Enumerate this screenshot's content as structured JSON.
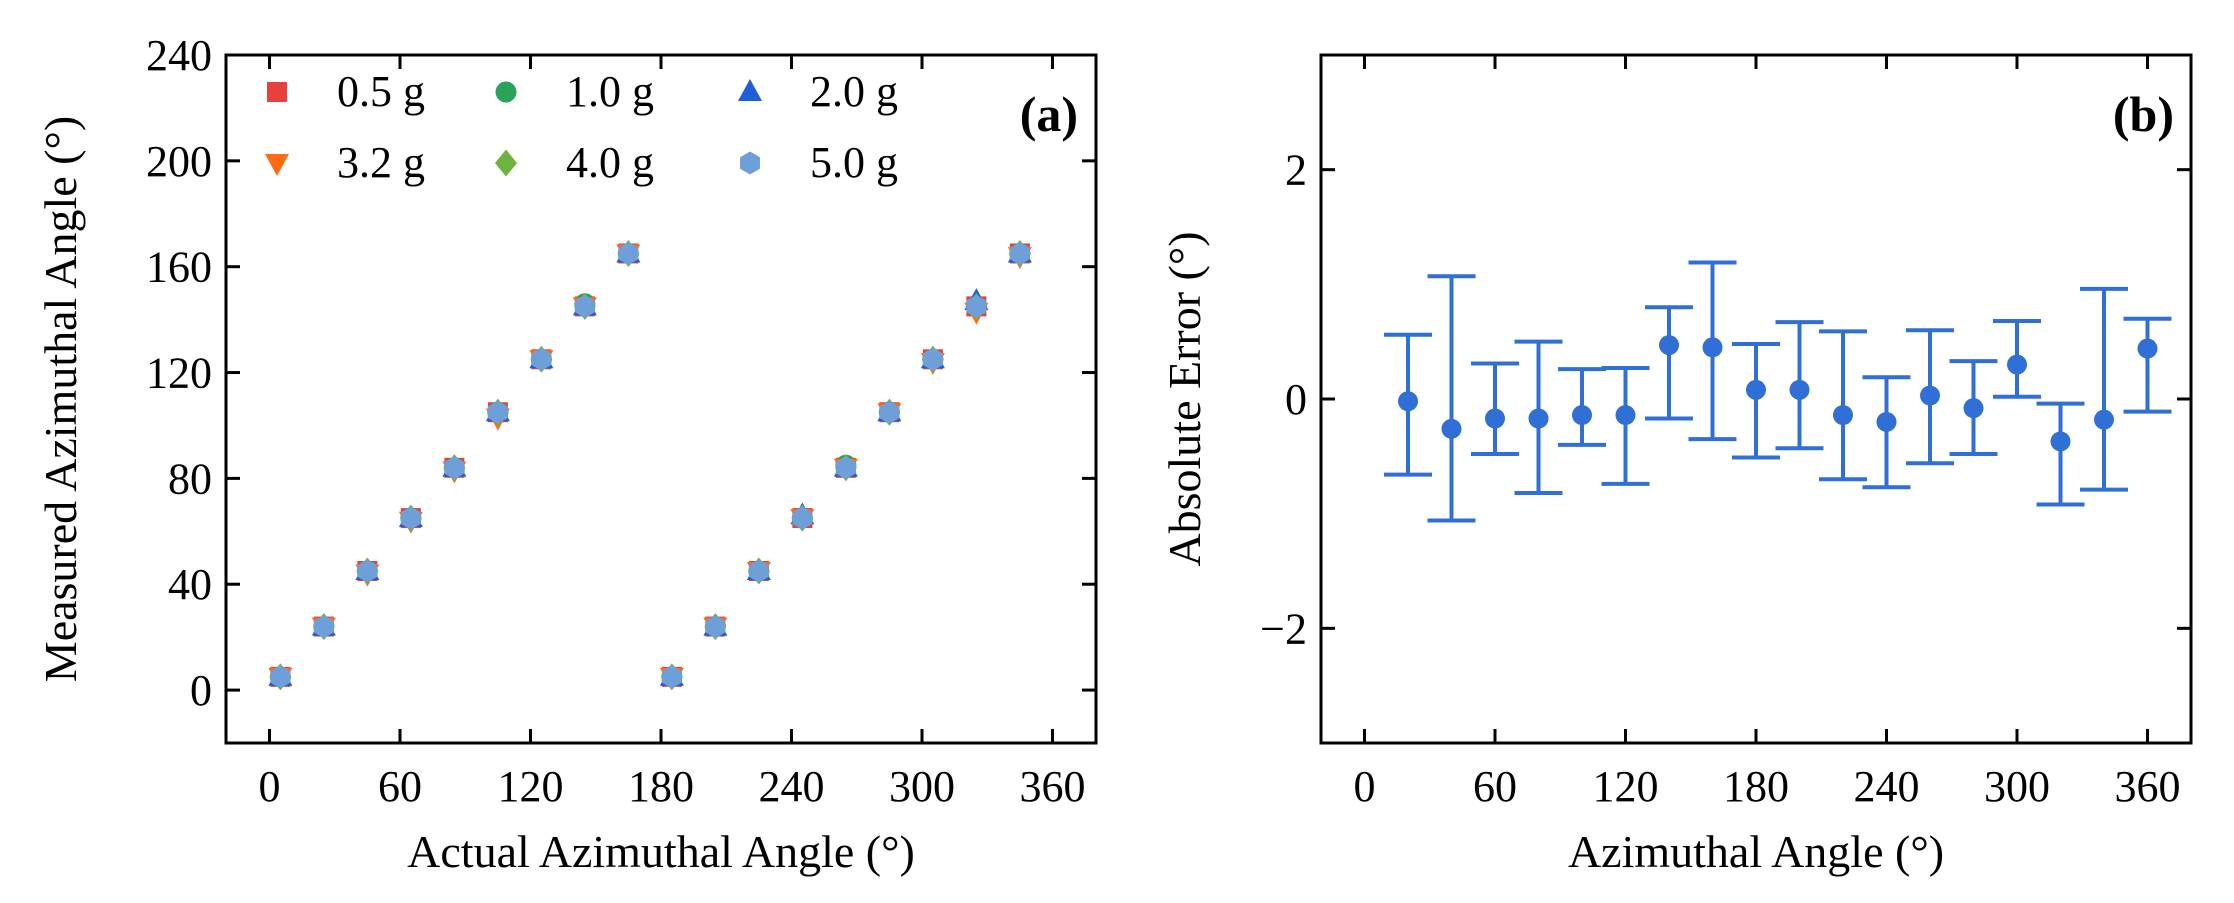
{
  "chart_data": [
    {
      "type": "scatter",
      "panel_label": "(a)",
      "xlabel": "Actual Azimuthal Angle (°)",
      "ylabel": "Measured Azimuthal Angle (°)",
      "xlim": [
        -20,
        380
      ],
      "ylim": [
        -20,
        240
      ],
      "x_ticks": [
        0,
        60,
        120,
        180,
        240,
        300,
        360
      ],
      "y_ticks": [
        0,
        40,
        80,
        120,
        160,
        200,
        240
      ],
      "x_tick_labels": [
        "0",
        "60",
        "120",
        "180",
        "240",
        "300",
        "360"
      ],
      "y_tick_labels": [
        "0",
        "40",
        "80",
        "120",
        "160",
        "200",
        "240"
      ],
      "legend_position": "top-left",
      "x": [
        5,
        25,
        45,
        65,
        85,
        105,
        125,
        145,
        165,
        185,
        205,
        225,
        245,
        265,
        285,
        305,
        325,
        345
      ],
      "series": [
        {
          "name": "0.5 g",
          "color": "#e8403c",
          "marker": "square",
          "values": [
            5,
            24,
            45,
            65,
            84,
            105,
            125,
            145,
            165,
            5,
            24,
            45,
            65,
            84,
            105,
            125,
            145,
            165
          ]
        },
        {
          "name": "1.0 g",
          "color": "#2aa35a",
          "marker": "circle",
          "values": [
            5,
            24,
            45,
            65,
            84,
            105,
            125,
            146,
            165,
            5,
            24,
            45,
            65,
            85,
            105,
            125,
            145,
            165
          ]
        },
        {
          "name": "2.0 g",
          "color": "#1f5fd6",
          "marker": "triangle-up",
          "values": [
            5,
            24,
            45,
            65,
            84,
            105,
            125,
            145,
            165,
            5,
            24,
            45,
            66,
            84,
            105,
            125,
            147,
            165
          ]
        },
        {
          "name": "3.2 g",
          "color": "#ff6a13",
          "marker": "triangle-down",
          "values": [
            5,
            24,
            44,
            64,
            83,
            103,
            125,
            145,
            165,
            5,
            24,
            45,
            65,
            84,
            105,
            124,
            143,
            164
          ]
        },
        {
          "name": "4.0 g",
          "color": "#6db33f",
          "marker": "diamond",
          "values": [
            5,
            24,
            45,
            65,
            84,
            105,
            125,
            145,
            165,
            5,
            24,
            45,
            65,
            84,
            105,
            125,
            145,
            165
          ]
        },
        {
          "name": "5.0 g",
          "color": "#6f9fd8",
          "marker": "hexagon",
          "values": [
            5,
            24,
            45,
            65,
            84,
            105,
            125,
            145,
            165,
            5,
            24,
            45,
            65,
            84,
            105,
            125,
            145,
            165
          ]
        }
      ]
    },
    {
      "type": "errorbar",
      "panel_label": "(b)",
      "xlabel": "Azimuthal Angle (°)",
      "ylabel": "Absolute Error (°)",
      "xlim": [
        -20,
        380
      ],
      "ylim": [
        -3,
        3
      ],
      "x_ticks": [
        0,
        60,
        120,
        180,
        240,
        300,
        360
      ],
      "y_ticks": [
        -2,
        0,
        2
      ],
      "x_tick_labels": [
        "0",
        "60",
        "120",
        "180",
        "240",
        "300",
        "360"
      ],
      "y_tick_labels": [
        "−2",
        "0",
        "2"
      ],
      "color": "#2f6fd6",
      "x": [
        20,
        40,
        60,
        80,
        100,
        120,
        140,
        160,
        180,
        200,
        220,
        240,
        260,
        280,
        300,
        320,
        340,
        360
      ],
      "values": [
        -0.02,
        -0.26,
        -0.17,
        -0.17,
        -0.14,
        -0.14,
        0.47,
        0.45,
        0.08,
        0.08,
        -0.14,
        -0.2,
        0.03,
        -0.08,
        0.3,
        -0.37,
        -0.18,
        0.44
      ],
      "err_low": [
        -0.66,
        -1.06,
        -0.48,
        -0.82,
        -0.4,
        -0.74,
        -0.17,
        -0.35,
        -0.51,
        -0.43,
        -0.7,
        -0.77,
        -0.56,
        -0.48,
        0.02,
        -0.92,
        -0.79,
        -0.11
      ],
      "err_high": [
        0.56,
        1.07,
        0.31,
        0.5,
        0.26,
        0.27,
        0.8,
        1.19,
        0.48,
        0.67,
        0.59,
        0.19,
        0.6,
        0.33,
        0.68,
        -0.04,
        0.96,
        0.7
      ]
    }
  ]
}
